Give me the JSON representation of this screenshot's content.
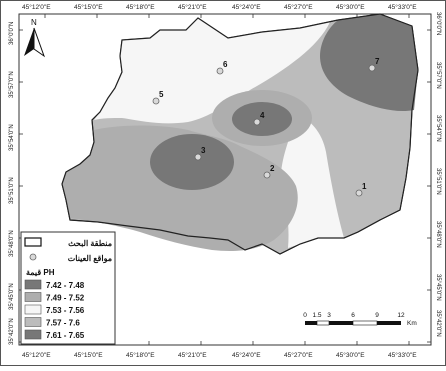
{
  "map": {
    "north_label": "N",
    "colors": {
      "frame": "#333333",
      "boundary": "#222222",
      "class_dark": "#777777",
      "class_mid": "#aeaeae",
      "class_white": "#f6f6f6",
      "class_light": "#bcbcbc",
      "site_fill": "#d9d9d9"
    },
    "top_ticks": [
      "45°12'0\"E",
      "45°15'0\"E",
      "45°18'0\"E",
      "45°21'0\"E",
      "45°24'0\"E",
      "45°27'0\"E",
      "45°30'0\"E",
      "45°33'0\"E"
    ],
    "bottom_ticks": [
      "45°12'0\"E",
      "45°15'0\"E",
      "45°18'0\"E",
      "45°21'0\"E",
      "45°24'0\"E",
      "45°27'0\"E",
      "45°30'0\"E",
      "45°33'0\"E"
    ],
    "left_ticks": [
      "36°0'0\"N",
      "35°57'0\"N",
      "35°54'0\"N",
      "35°51'0\"N",
      "35°48'0\"N",
      "35°45'0\"N",
      "35°42'0\"N"
    ],
    "right_ticks": [
      "36°0'0\"N",
      "35°57'0\"N",
      "35°54'0\"N",
      "35°51'0\"N",
      "35°48'0\"N",
      "35°45'0\"N",
      "35°42'0\"N"
    ],
    "sites": [
      "1",
      "2",
      "3",
      "4",
      "5",
      "6",
      "7"
    ],
    "legend": {
      "boundary_label": "منطقة البحث",
      "sites_label": "مواقع العينات",
      "ph_title": "قيمة PH",
      "classes": [
        {
          "label": "7.42 - 7.48",
          "color": "#777777"
        },
        {
          "label": "7.49 - 7.52",
          "color": "#aeaeae"
        },
        {
          "label": "7.53 - 7.56",
          "color": "#f6f6f6"
        },
        {
          "label": "7.57 - 7.6",
          "color": "#bcbcbc"
        },
        {
          "label": "7.61 - 7.65",
          "color": "#777777"
        }
      ]
    },
    "scalebar": {
      "ticks": [
        "0",
        "1.5",
        "3",
        "6",
        "9",
        "12"
      ],
      "unit": "Km"
    }
  }
}
